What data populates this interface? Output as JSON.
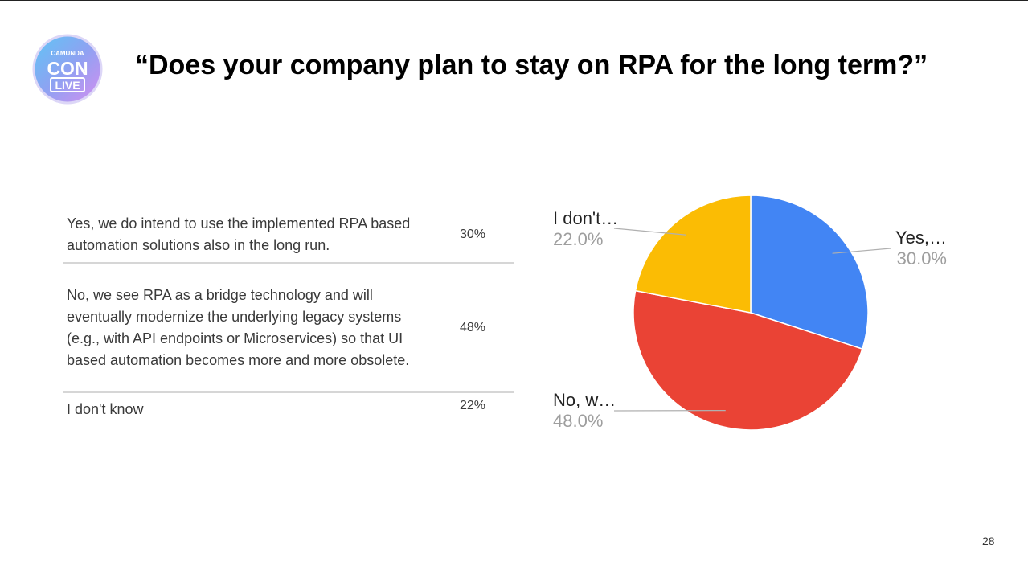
{
  "slide": {
    "title": "“Does your company plan to stay on RPA for the long term?”",
    "page_number": "28",
    "logo": {
      "line1": "CAMUNDA",
      "line2": "CON",
      "line3": "LIVE"
    }
  },
  "table": {
    "rows": [
      {
        "label": "Yes, we do intend to use the implemented RPA based automation solutions also in the long run.",
        "value": "30%"
      },
      {
        "label": "No, we see RPA as a bridge technology and will eventually modernize the underlying legacy systems (e.g., with API endpoints or Microservices) so that UI based automation becomes more and more obsolete.",
        "value": "48%"
      },
      {
        "label": "I don't know",
        "value": "22%"
      }
    ]
  },
  "chart_data": {
    "type": "pie",
    "categories": [
      "Yes,…",
      "No, w…",
      "I don't…"
    ],
    "values": [
      30.0,
      48.0,
      22.0
    ],
    "value_labels": [
      "30.0%",
      "48.0%",
      "22.0%"
    ],
    "colors": [
      "#4285f4",
      "#ea4335",
      "#fbbc04"
    ],
    "start_angle_deg": 0,
    "direction": "clockwise",
    "legend": "none",
    "labels": "outside-with-leader-lines"
  }
}
